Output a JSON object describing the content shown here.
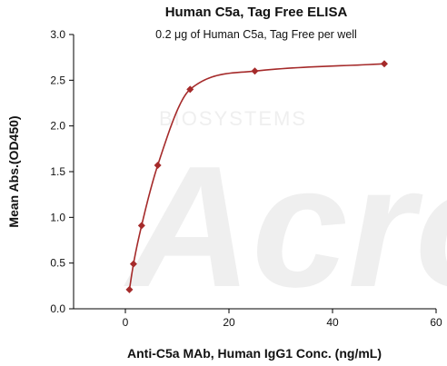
{
  "chart_data": {
    "type": "scatter",
    "title": "Human C5a, Tag Free ELISA",
    "subtitle": "0.2 μg of Human C5a, Tag Free per well",
    "xlabel": "Anti-C5a MAb, Human IgG1 Conc. (ng/mL)",
    "ylabel": "Mean Abs.(OD450)",
    "xlim": [
      -10,
      60
    ],
    "ylim": [
      0,
      3.0
    ],
    "xticks": [
      0,
      20,
      40,
      60
    ],
    "yticks": [
      0.0,
      0.5,
      1.0,
      1.5,
      2.0,
      2.5,
      3.0
    ],
    "grid": false,
    "series": [
      {
        "x": [
          0.78,
          1.56,
          3.13,
          6.25,
          12.5,
          25,
          50
        ],
        "y": [
          0.21,
          0.49,
          0.91,
          1.57,
          2.4,
          2.6,
          2.68
        ],
        "color": "#a52a2a",
        "marker": "diamond",
        "fit": "smooth-curve"
      }
    ],
    "watermark": "ACRO BIOSYSTEMS"
  }
}
